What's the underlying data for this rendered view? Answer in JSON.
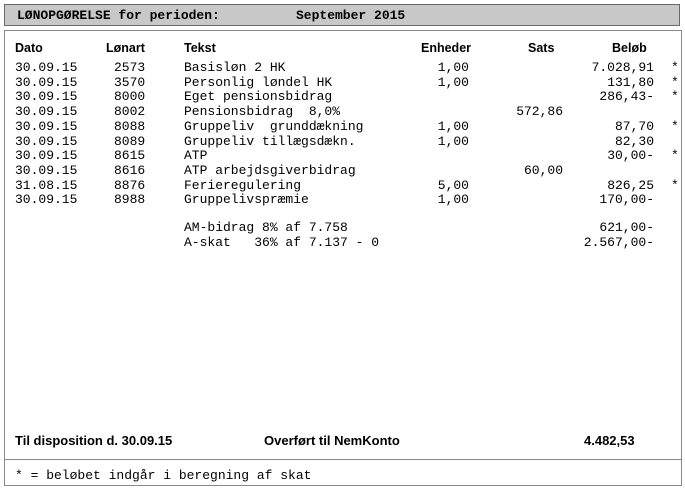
{
  "header": {
    "title": "LØNOPGØRELSE for perioden:",
    "period": "September 2015"
  },
  "columns": {
    "date": "Dato",
    "code": "Lønart",
    "text": "Tekst",
    "units": "Enheder",
    "rate": "Sats",
    "amount": "Beløb"
  },
  "rows": [
    {
      "date": "30.09.15",
      "code": "2573",
      "text": "Basisløn 2 HK",
      "units": "1,00",
      "rate": "",
      "amount": "7.028,91",
      "star": "*"
    },
    {
      "date": "30.09.15",
      "code": "3570",
      "text": "Personlig løndel HK",
      "units": "1,00",
      "rate": "",
      "amount": "131,80",
      "star": "*"
    },
    {
      "date": "30.09.15",
      "code": "8000",
      "text": "Eget pensionsbidrag",
      "units": "",
      "rate": "",
      "amount": "286,43-",
      "star": "*"
    },
    {
      "date": "30.09.15",
      "code": "8002",
      "text": "Pensionsbidrag  8,0%",
      "units": "",
      "rate": "572,86",
      "amount": "",
      "star": ""
    },
    {
      "date": "30.09.15",
      "code": "8088",
      "text": "Gruppeliv  grunddækning",
      "units": "1,00",
      "rate": "",
      "amount": "87,70",
      "star": "*"
    },
    {
      "date": "30.09.15",
      "code": "8089",
      "text": "Gruppeliv tillægsdækn.",
      "units": "1,00",
      "rate": "",
      "amount": "82,30",
      "star": ""
    },
    {
      "date": "30.09.15",
      "code": "8615",
      "text": "ATP",
      "units": "",
      "rate": "",
      "amount": "30,00-",
      "star": "*"
    },
    {
      "date": "30.09.15",
      "code": "8616",
      "text": "ATP arbejdsgiverbidrag",
      "units": "",
      "rate": "60,00",
      "amount": "",
      "star": ""
    },
    {
      "date": "31.08.15",
      "code": "8876",
      "text": "Ferieregulering",
      "units": "5,00",
      "rate": "",
      "amount": "826,25",
      "star": "*"
    },
    {
      "date": "30.09.15",
      "code": "8988",
      "text": "Gruppelivspræmie",
      "units": "1,00",
      "rate": "",
      "amount": "170,00-",
      "star": ""
    }
  ],
  "tax_rows": [
    {
      "text": "AM-bidrag 8% af 7.758",
      "amount": "621,00-"
    },
    {
      "text": "A-skat   36% af 7.137 - 0",
      "amount": "2.567,00-"
    }
  ],
  "footer": {
    "disposition": "Til disposition d. 30.09.15",
    "transfer": "Overført til NemKonto",
    "total": "4.482,53",
    "note": "* = beløbet indgår i beregning af skat"
  }
}
